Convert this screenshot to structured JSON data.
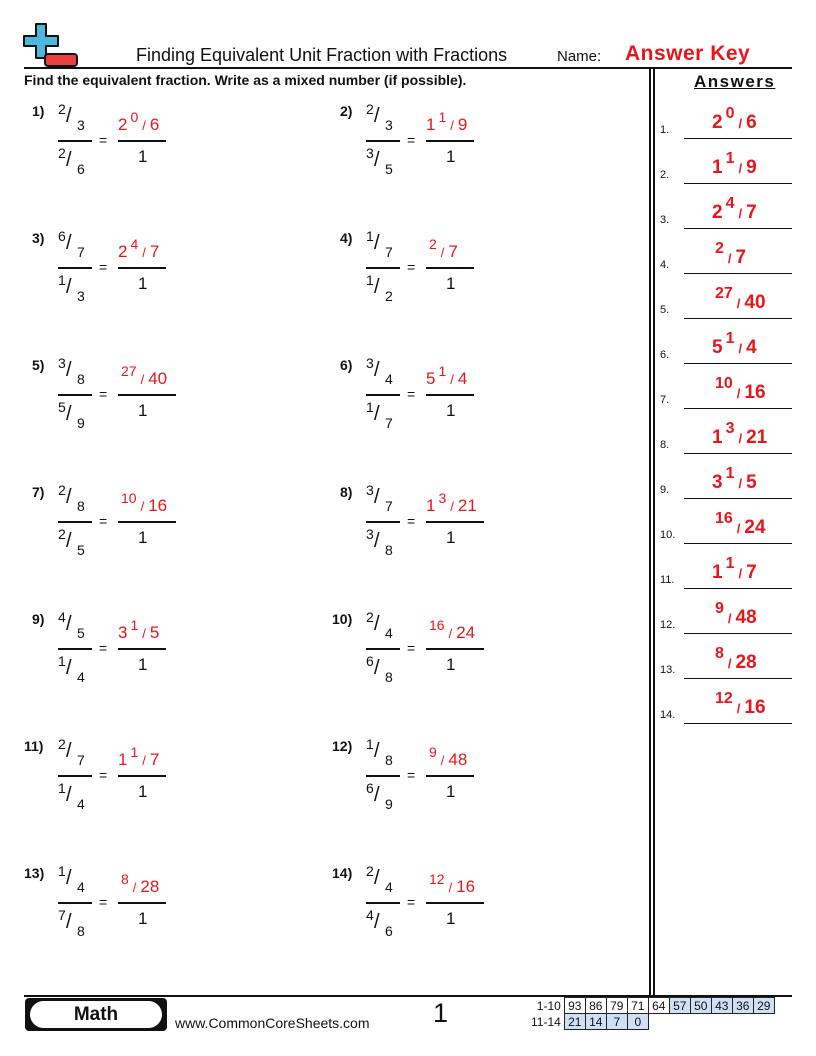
{
  "header": {
    "title": "Finding Equivalent Unit Fraction with Fractions",
    "name_label": "Name:",
    "name_value": "Answer Key",
    "logo": "plus-minus-logo-icon"
  },
  "instructions": "Find the equivalent fraction. Write as a mixed number (if possible).",
  "colors": {
    "answer": "#e8161b",
    "logo_plus": "#4db8dd",
    "logo_minus": "#e84040",
    "score_highlight": "#cfe0f6"
  },
  "problems": [
    {
      "label": "1)",
      "top": [
        "2",
        "3"
      ],
      "bottom": [
        "2",
        "6"
      ],
      "answer": {
        "whole": "2",
        "n": "0",
        "d": "6"
      },
      "den": "1"
    },
    {
      "label": "2)",
      "top": [
        "2",
        "3"
      ],
      "bottom": [
        "3",
        "5"
      ],
      "answer": {
        "whole": "1",
        "n": "1",
        "d": "9"
      },
      "den": "1"
    },
    {
      "label": "3)",
      "top": [
        "6",
        "7"
      ],
      "bottom": [
        "1",
        "3"
      ],
      "answer": {
        "whole": "2",
        "n": "4",
        "d": "7"
      },
      "den": "1"
    },
    {
      "label": "4)",
      "top": [
        "1",
        "7"
      ],
      "bottom": [
        "1",
        "2"
      ],
      "answer": {
        "whole": "",
        "n": "2",
        "d": "7"
      },
      "den": "1"
    },
    {
      "label": "5)",
      "top": [
        "3",
        "8"
      ],
      "bottom": [
        "5",
        "9"
      ],
      "answer": {
        "whole": "",
        "n": "27",
        "d": "40"
      },
      "den": "1"
    },
    {
      "label": "6)",
      "top": [
        "3",
        "4"
      ],
      "bottom": [
        "1",
        "7"
      ],
      "answer": {
        "whole": "5",
        "n": "1",
        "d": "4"
      },
      "den": "1"
    },
    {
      "label": "7)",
      "top": [
        "2",
        "8"
      ],
      "bottom": [
        "2",
        "5"
      ],
      "answer": {
        "whole": "",
        "n": "10",
        "d": "16"
      },
      "den": "1"
    },
    {
      "label": "8)",
      "top": [
        "3",
        "7"
      ],
      "bottom": [
        "3",
        "8"
      ],
      "answer": {
        "whole": "1",
        "n": "3",
        "d": "21"
      },
      "den": "1"
    },
    {
      "label": "9)",
      "top": [
        "4",
        "5"
      ],
      "bottom": [
        "1",
        "4"
      ],
      "answer": {
        "whole": "3",
        "n": "1",
        "d": "5"
      },
      "den": "1"
    },
    {
      "label": "10)",
      "top": [
        "2",
        "4"
      ],
      "bottom": [
        "6",
        "8"
      ],
      "answer": {
        "whole": "",
        "n": "16",
        "d": "24"
      },
      "den": "1"
    },
    {
      "label": "11)",
      "top": [
        "2",
        "7"
      ],
      "bottom": [
        "1",
        "4"
      ],
      "answer": {
        "whole": "1",
        "n": "1",
        "d": "7"
      },
      "den": "1"
    },
    {
      "label": "12)",
      "top": [
        "1",
        "8"
      ],
      "bottom": [
        "6",
        "9"
      ],
      "answer": {
        "whole": "",
        "n": "9",
        "d": "48"
      },
      "den": "1"
    },
    {
      "label": "13)",
      "top": [
        "1",
        "4"
      ],
      "bottom": [
        "7",
        "8"
      ],
      "answer": {
        "whole": "",
        "n": "8",
        "d": "28"
      },
      "den": "1"
    },
    {
      "label": "14)",
      "top": [
        "2",
        "4"
      ],
      "bottom": [
        "4",
        "6"
      ],
      "answer": {
        "whole": "",
        "n": "12",
        "d": "16"
      },
      "den": "1"
    }
  ],
  "slash": "/",
  "equals": "=",
  "answers_panel": {
    "title": "Answers",
    "labels": [
      "1.",
      "2.",
      "3.",
      "4.",
      "5.",
      "6.",
      "7.",
      "8.",
      "9.",
      "10.",
      "11.",
      "12.",
      "13.",
      "14."
    ]
  },
  "footer": {
    "subject": "Math",
    "website": "www.CommonCoreSheets.com",
    "page": "1",
    "score_rows": [
      {
        "label": "1-10",
        "values": [
          "93",
          "86",
          "79",
          "71",
          "64",
          "57",
          "50",
          "43",
          "36",
          "29"
        ]
      },
      {
        "label": "11-14",
        "values": [
          "21",
          "14",
          "7",
          "0"
        ]
      }
    ]
  }
}
